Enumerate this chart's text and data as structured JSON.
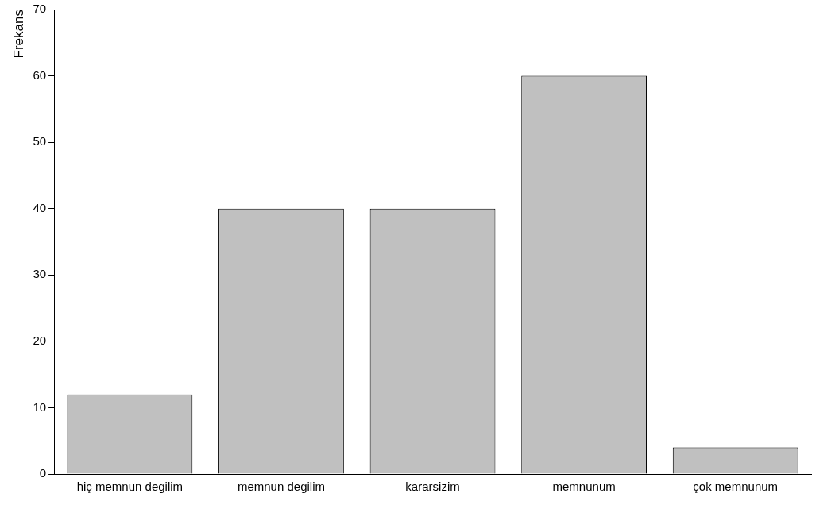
{
  "chart_data": {
    "type": "bar",
    "ylabel": "Frekans",
    "categories": [
      "hiç memnun degilim",
      "memnun degilim",
      "kararsizim",
      "memnunum",
      "çok memnunum"
    ],
    "values": [
      12,
      40,
      40,
      60,
      4
    ],
    "color": "#c0c0c0",
    "ylim": [
      0,
      70
    ],
    "yticks": [
      0,
      10,
      20,
      30,
      40,
      50,
      60,
      70
    ],
    "grid": false,
    "legend": false
  }
}
